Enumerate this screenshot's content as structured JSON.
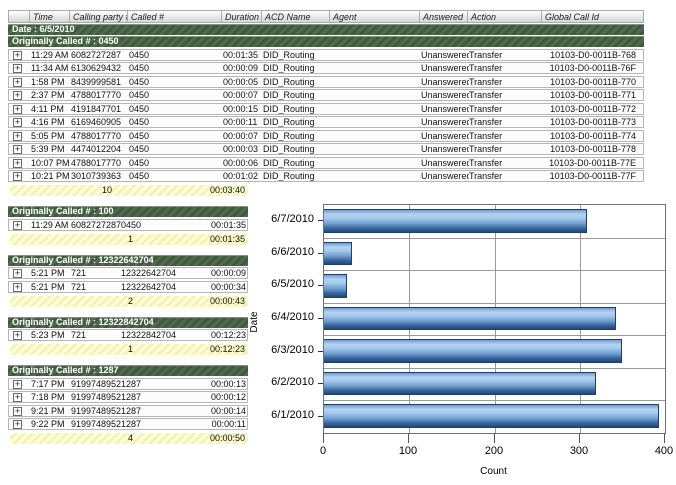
{
  "table": {
    "columns": [
      "Time",
      "Calling party #",
      "Called #",
      "Duration",
      "ACD Name",
      "Agent",
      "Answered",
      "Action",
      "Global Call Id"
    ],
    "date_band": "Date : 6/5/2010",
    "expand_icon": "+",
    "sections": [
      {
        "title": "Originally Called # : 0450",
        "wide": true,
        "rows": [
          {
            "time": "11:29 AM",
            "calling": "6082727287",
            "called": "0450",
            "duration": "00:01:35",
            "acd": "DID_Routing",
            "agent": "",
            "answered": "Unanswered",
            "action": "Transfer",
            "gcid": "10103-D0-0011B-768"
          },
          {
            "time": "11:34 AM",
            "calling": "6130629432",
            "called": "0450",
            "duration": "00:00:09",
            "acd": "DID_Routing",
            "agent": "",
            "answered": "Unanswered",
            "action": "Transfer",
            "gcid": "10103-D0-0011B-76F"
          },
          {
            "time": "1:58 PM",
            "calling": "8439999581",
            "called": "0450",
            "duration": "00:00:05",
            "acd": "DID_Routing",
            "agent": "",
            "answered": "Unanswered",
            "action": "Transfer",
            "gcid": "10103-D0-0011B-770"
          },
          {
            "time": "2:37 PM",
            "calling": "4788017770",
            "called": "0450",
            "duration": "00:00:07",
            "acd": "DID_Routing",
            "agent": "",
            "answered": "Unanswered",
            "action": "Transfer",
            "gcid": "10103-D0-0011B-771"
          },
          {
            "time": "4:11 PM",
            "calling": "4191847701",
            "called": "0450",
            "duration": "00:00:15",
            "acd": "DID_Routing",
            "agent": "",
            "answered": "Unanswered",
            "action": "Transfer",
            "gcid": "10103-D0-0011B-772"
          },
          {
            "time": "4:16 PM",
            "calling": "6169460905",
            "called": "0450",
            "duration": "00:00:11",
            "acd": "DID_Routing",
            "agent": "",
            "answered": "Unanswered",
            "action": "Transfer",
            "gcid": "10103-D0-0011B-773"
          },
          {
            "time": "5:05 PM",
            "calling": "4788017770",
            "called": "0450",
            "duration": "00:00:07",
            "acd": "DID_Routing",
            "agent": "",
            "answered": "Unanswered",
            "action": "Transfer",
            "gcid": "10103-D0-0011B-774"
          },
          {
            "time": "5:39 PM",
            "calling": "4474012204",
            "called": "0450",
            "duration": "00:00:03",
            "acd": "DID_Routing",
            "agent": "",
            "answered": "Unanswered",
            "action": "Transfer",
            "gcid": "10103-D0-0011B-778"
          },
          {
            "time": "10:07 PM",
            "calling": "4788017770",
            "called": "0450",
            "duration": "00:00:06",
            "acd": "DID_Routing",
            "agent": "",
            "answered": "Unanswered",
            "action": "Transfer",
            "gcid": "10103-D0-0011B-77E"
          },
          {
            "time": "10:21 PM",
            "calling": "3010739363",
            "called": "0450",
            "duration": "00:01:02",
            "acd": "DID_Routing",
            "agent": "",
            "answered": "Unanswered",
            "action": "Transfer",
            "gcid": "10103-D0-0011B-77F"
          }
        ],
        "summary_count": "10",
        "summary_duration": "00:03:40"
      },
      {
        "title": "Originally Called # : 100",
        "wide": false,
        "rows": [
          {
            "time": "11:29 AM",
            "calling": "6082727287",
            "called": "0450",
            "duration": "00:01:35"
          }
        ],
        "summary_count": "1",
        "summary_duration": "00:01:35"
      },
      {
        "title": "Originally Called # : 12322642704",
        "wide": false,
        "rows": [
          {
            "time": "5:21 PM",
            "calling": "721",
            "called": "12322642704",
            "duration": "00:00:09"
          },
          {
            "time": "5:21 PM",
            "calling": "721",
            "called": "12322642704",
            "duration": "00:00:34"
          }
        ],
        "summary_count": "2",
        "summary_duration": "00:00:43"
      },
      {
        "title": "Originally Called # : 12322842704",
        "wide": false,
        "rows": [
          {
            "time": "5:23 PM",
            "calling": "721",
            "called": "12322842704",
            "duration": "00:12:23"
          }
        ],
        "summary_count": "1",
        "summary_duration": "00:12:23"
      },
      {
        "title": "Originally Called # : 1287",
        "wide": false,
        "rows": [
          {
            "time": "7:17 PM",
            "calling": "9199748952",
            "called": "1287",
            "duration": "00:00:13"
          },
          {
            "time": "7:18 PM",
            "calling": "9199748952",
            "called": "1287",
            "duration": "00:00:12"
          },
          {
            "time": "9:21 PM",
            "calling": "9199748952",
            "called": "1287",
            "duration": "00:00:14"
          },
          {
            "time": "9:22 PM",
            "calling": "9199748952",
            "called": "1287",
            "duration": "00:00:11"
          }
        ],
        "summary_count": "4",
        "summary_duration": "00:00:50"
      }
    ]
  },
  "chart_data": {
    "type": "bar",
    "orientation": "horizontal",
    "categories": [
      "6/7/2010",
      "6/6/2010",
      "6/5/2010",
      "6/4/2010",
      "6/3/2010",
      "6/2/2010",
      "6/1/2010"
    ],
    "values": [
      308,
      33,
      27,
      342,
      349,
      319,
      393
    ],
    "title": "",
    "xlabel": "Count",
    "ylabel": "Date",
    "xlim": [
      0,
      400
    ],
    "xticks": [
      0,
      100,
      200,
      300,
      400
    ],
    "grid": true,
    "legend": false,
    "bar_color_light": "#b5d4f2",
    "bar_color_dark": "#1e4878",
    "gridline_color": "#9a9a9a"
  }
}
